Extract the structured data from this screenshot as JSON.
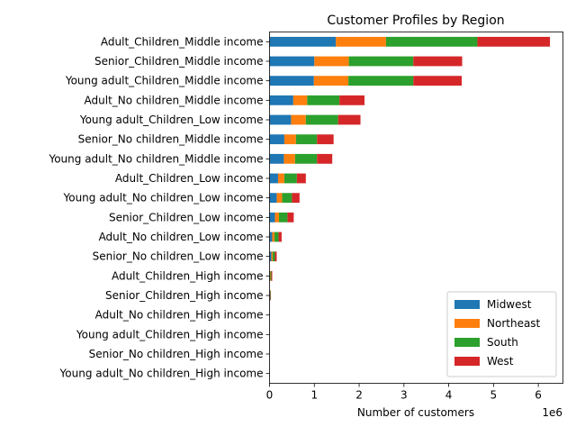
{
  "chart_data": {
    "type": "bar",
    "orientation": "horizontal",
    "stacked": true,
    "title": "Customer Profiles by Region",
    "xlabel": "Number of customers",
    "ylabel": "",
    "x_scale_label": "1e6",
    "x_scale": 1000000,
    "xlim": [
      0,
      6.55
    ],
    "xticks": [
      0,
      1,
      2,
      3,
      4,
      5,
      6
    ],
    "grid": false,
    "legend_position": "lower-right",
    "categories": [
      "Adult_Children_Middle income",
      "Senior_Children_Middle income",
      "Young adult_Children_Middle income",
      "Adult_No children_Middle income",
      "Young adult_Children_Low income",
      "Senior_No children_Middle income",
      "Young adult_No children_Middle income",
      "Adult_Children_Low income",
      "Young adult_No children_Low income",
      "Senior_Children_Low income",
      "Adult_No children_Low income",
      "Senior_No children_Low income",
      "Adult_Children_High income",
      "Senior_Children_High income",
      "Adult_No children_High income",
      "Young adult_Children_High income",
      "Senior_No children_High income",
      "Young adult_No children_High income"
    ],
    "series": [
      {
        "name": "Midwest",
        "color": "#1f77b4",
        "values": [
          1.48,
          1.0,
          0.99,
          0.53,
          0.48,
          0.33,
          0.32,
          0.19,
          0.16,
          0.12,
          0.06,
          0.04,
          0.01,
          0.005,
          0.001,
          0.001,
          0.0005,
          0.0005
        ]
      },
      {
        "name": "Northeast",
        "color": "#ff7f0e",
        "values": [
          1.12,
          0.77,
          0.77,
          0.31,
          0.33,
          0.26,
          0.25,
          0.14,
          0.12,
          0.09,
          0.05,
          0.03,
          0.01,
          0.004,
          0.001,
          0.001,
          0.0005,
          0.0005
        ]
      },
      {
        "name": "South",
        "color": "#2ca02c",
        "values": [
          2.04,
          1.44,
          1.45,
          0.72,
          0.72,
          0.47,
          0.49,
          0.28,
          0.22,
          0.19,
          0.09,
          0.05,
          0.02,
          0.01,
          0.002,
          0.002,
          0.001,
          0.001
        ]
      },
      {
        "name": "West",
        "color": "#d62728",
        "values": [
          1.62,
          1.09,
          1.08,
          0.56,
          0.5,
          0.37,
          0.34,
          0.2,
          0.17,
          0.14,
          0.07,
          0.04,
          0.02,
          0.01,
          0.002,
          0.001,
          0.001,
          0.001
        ]
      }
    ]
  }
}
